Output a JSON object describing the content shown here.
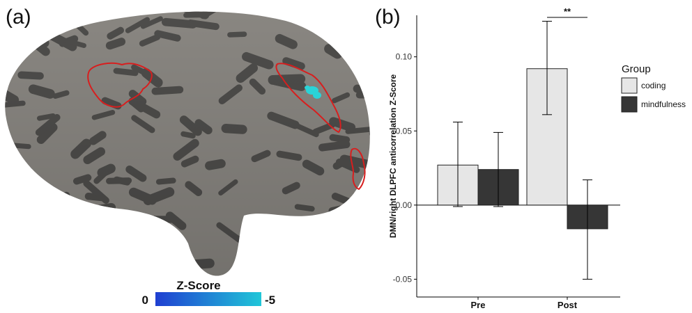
{
  "panels": {
    "a_label": "(a)",
    "b_label": "(b)"
  },
  "colorbar": {
    "title": "Z-Score",
    "min_label": "0",
    "max_label": "-5",
    "color_start": "#1f3fd1",
    "color_end": "#20c6d8"
  },
  "brain": {
    "roi_outline_color": "#d81e1e",
    "cluster_color": "#2ad4d8",
    "cortex_light": "#8a8782",
    "cortex_dark": "#4e4d4b"
  },
  "chart_data": {
    "type": "bar",
    "categories": [
      "Pre",
      "Post"
    ],
    "ylabel": "DMN/right DLPFC anticorrelation Z-Score",
    "xlabel": "",
    "ylim": [
      -0.062,
      0.128
    ],
    "yticks": [
      -0.05,
      0.0,
      0.05,
      0.1
    ],
    "ytick_labels": [
      "-0.05",
      "0.00",
      "0.05",
      "0.10"
    ],
    "legend": {
      "title": "Group",
      "position": "right"
    },
    "series": [
      {
        "name": "coding",
        "color": "#e6e6e6",
        "values": [
          0.027,
          0.092
        ],
        "err_low": [
          -0.001,
          0.061
        ],
        "err_high": [
          0.056,
          0.124
        ]
      },
      {
        "name": "mindfulness",
        "color": "#363636",
        "values": [
          0.024,
          -0.016
        ],
        "err_low": [
          -0.001,
          -0.05
        ],
        "err_high": [
          0.049,
          0.017
        ]
      }
    ],
    "annotations": [
      {
        "text": "**",
        "category": "Post"
      }
    ]
  }
}
